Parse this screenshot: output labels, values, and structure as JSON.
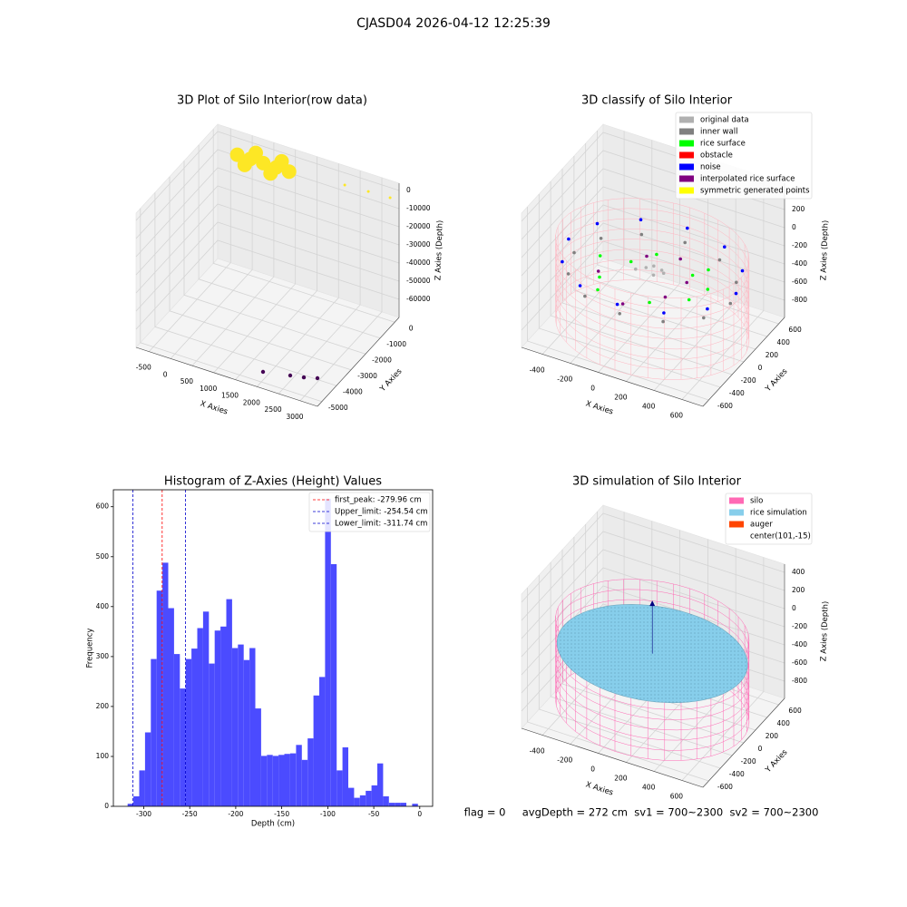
{
  "title": "CJASD04 2026-04-12 12:25:39",
  "footer": "flag = 0     avgDepth = 272 cm  sv1 = 700~2300  sv2 = 700~2300",
  "chart_data": [
    {
      "type": "scatter3d",
      "title": "3D Plot of Silo Interior(row data)",
      "xlabel": "X Axies",
      "ylabel": "Y Axies",
      "zlabel": "Z Axies (Depth)",
      "xlim": [
        -800,
        3400
      ],
      "ylim": [
        -5300,
        300
      ],
      "zlim": [
        -70000,
        4000
      ],
      "xticks": [
        -500,
        0,
        500,
        1000,
        1500,
        2000,
        2500,
        3000
      ],
      "yticks": [
        -5000,
        -4000,
        -3000,
        -2000,
        -1000,
        0
      ],
      "zticks": [
        -60000,
        -50000,
        -40000,
        -30000,
        -20000,
        -10000,
        0
      ],
      "series": [
        {
          "color": "#fde725",
          "marker_size": 8,
          "x": [
            -70,
            230,
            530,
            830,
            1130,
            230,
            830,
            230,
            830
          ],
          "y": [
            -520,
            -520,
            -520,
            -520,
            -520,
            -900,
            -900,
            -140,
            -140
          ],
          "z": [
            0,
            0,
            0,
            0,
            0,
            0,
            0,
            0,
            0
          ]
        },
        {
          "color": "#fde725",
          "marker_size": 1.5,
          "x": [
            2342,
            2867,
            3358
          ],
          "y": [
            -294,
            -232,
            -193
          ],
          "z": [
            0,
            0,
            0
          ]
        },
        {
          "color": "#440154",
          "marker_size": 2.2,
          "x": [
            2102,
            2648,
            2921,
            3177
          ],
          "y": [
            -5188,
            -4936,
            -4813,
            -4639
          ],
          "z": [
            -62000,
            -62000,
            -62000,
            -62000
          ]
        }
      ]
    },
    {
      "type": "scatter3d",
      "title": "3D classify of Silo Interior",
      "xlabel": "X Axies",
      "ylabel": "Y Axies",
      "zlabel": "Z Axies (Depth)",
      "xlim": [
        -550,
        750
      ],
      "ylim": [
        -700,
        700
      ],
      "zlim": [
        -990,
        490
      ],
      "xticks": [
        -400,
        -200,
        0,
        200,
        400,
        600
      ],
      "yticks": [
        -600,
        -400,
        -200,
        0,
        200,
        400,
        600
      ],
      "zticks": [
        -800,
        -600,
        -400,
        -200,
        0,
        200,
        400
      ],
      "legend": "upper right",
      "center": [
        101,
        -15
      ],
      "cylinder": {
        "color": "#ffb6c1",
        "radius": 640,
        "zlim": [
          -950,
          -50
        ]
      },
      "series": [
        {
          "name": "original data",
          "color": "#b0b0b0",
          "x": [
            50,
            120,
            150,
            80,
            0,
            180
          ],
          "y": [
            0,
            -40,
            30,
            60,
            -60,
            -10
          ],
          "z": [
            -300,
            -320,
            -300,
            -310,
            -300,
            -290
          ]
        },
        {
          "name": "inner wall",
          "color": "#808080",
          "x": [
            661,
            586,
            381,
            101,
            -179,
            -384,
            -459,
            -384,
            -179,
            101,
            381,
            586
          ],
          "y": [
            -15,
            265,
            470,
            545,
            470,
            265,
            -15,
            -295,
            -500,
            -575,
            -500,
            -295
          ],
          "z": [
            -380,
            -380,
            -380,
            -380,
            -380,
            -380,
            -380,
            -380,
            -380,
            -380,
            -380,
            -380
          ]
        },
        {
          "name": "rice surface",
          "color": "#00ff00",
          "x": [
            300,
            -100,
            -200,
            400,
            200,
            -300,
            0,
            350,
            -150,
            450
          ],
          "y": [
            200,
            100,
            -200,
            -100,
            -300,
            50,
            300,
            350,
            -350,
            100
          ],
          "z": [
            -400,
            -380,
            -390,
            -410,
            -400,
            -380,
            -390,
            -420,
            -400,
            -410
          ]
        },
        {
          "name": "obstacle",
          "color": "#ff0000",
          "x": [],
          "y": [],
          "z": []
        },
        {
          "name": "noise",
          "color": "#0000ff",
          "x": [
            701,
            621,
            401,
            101,
            -199,
            -419,
            -499,
            -419,
            -199,
            101,
            401,
            621
          ],
          "y": [
            -15,
            285,
            505,
            585,
            505,
            285,
            -15,
            -315,
            -535,
            -615,
            -535,
            -315
          ],
          "z": [
            -250,
            -250,
            -250,
            -250,
            -250,
            -250,
            -250,
            -250,
            -250,
            -250,
            -250,
            -250
          ]
        },
        {
          "name": "interpolated rice surface",
          "color": "#800080",
          "x": [
            250,
            -50,
            300,
            -250,
            150,
            50
          ],
          "y": [
            -150,
            250,
            100,
            -100,
            350,
            -400
          ],
          "z": [
            -420,
            -400,
            -410,
            -420,
            -400,
            -420
          ]
        },
        {
          "name": "symmetric generated points",
          "color": "#ffff00",
          "x": [],
          "y": [],
          "z": []
        }
      ]
    },
    {
      "type": "histogram",
      "title": "Histogram of Z-Axies (Height) Values",
      "xlabel": "Depth (cm)",
      "ylabel": "Frequency",
      "color": "#4b4bff",
      "xlim": [
        -333,
        14
      ],
      "ylim": [
        0,
        634
      ],
      "xticks": [
        -300,
        -250,
        -200,
        -150,
        -100,
        -50,
        0
      ],
      "yticks": [
        0,
        100,
        200,
        300,
        400,
        500,
        600
      ],
      "bins": [
        -317.5,
        -311.19,
        -304.88,
        -298.57,
        -292.26,
        -285.95,
        -279.64,
        -273.33,
        -267.02,
        -260.71,
        -254.4,
        -248.09,
        -241.78,
        -235.47,
        -229.16,
        -222.85,
        -216.54,
        -210.23,
        -203.92,
        -197.61,
        -191.3,
        -184.99,
        -178.68,
        -172.37,
        -166.06,
        -159.75,
        -153.44,
        -147.13,
        -140.82,
        -134.51,
        -128.2,
        -121.89,
        -115.58,
        -109.27,
        -102.96,
        -96.65,
        -90.34,
        -84.03,
        -77.72,
        -71.41,
        -65.1,
        -58.79,
        -52.48,
        -46.17,
        -39.86,
        -33.55,
        -27.24,
        -20.93,
        -14.62,
        -8.31,
        -2
      ],
      "counts": [
        5,
        20,
        72,
        148,
        295,
        432,
        488,
        397,
        305,
        236,
        295,
        316,
        357,
        390,
        286,
        352,
        360,
        415,
        317,
        324,
        293,
        317,
        196,
        101,
        103,
        101,
        103,
        105,
        106,
        123,
        93,
        136,
        222,
        259,
        616,
        485,
        72,
        118,
        37,
        17,
        22,
        31,
        42,
        86,
        20,
        7,
        7,
        7,
        0,
        5
      ],
      "legend": "upper right",
      "lines": [
        {
          "label": "first_peak: -279.96 cm",
          "value": -279.96,
          "color": "#ff0000"
        },
        {
          "label": "Upper_limit: -254.54 cm",
          "value": -254.54,
          "color": "#0000cc"
        },
        {
          "label": "Lower_limit: -311.74 cm",
          "value": -311.74,
          "color": "#0000cc"
        }
      ]
    },
    {
      "type": "silo3d",
      "title": "3D simulation of Silo Interior",
      "xlabel": "X Axies",
      "ylabel": "Y Axies",
      "zlabel": "Z Axies (Depth)",
      "xlim": [
        -550,
        750
      ],
      "ylim": [
        -700,
        700
      ],
      "zlim": [
        -990,
        490
      ],
      "xticks": [
        -400,
        -200,
        0,
        200,
        400,
        600
      ],
      "yticks": [
        -600,
        -400,
        -200,
        0,
        200,
        400,
        600
      ],
      "zticks": [
        -800,
        -600,
        -400,
        -200,
        0,
        200,
        400
      ],
      "legend": "upper right",
      "center": [
        101,
        -15
      ],
      "center_label": "center(101,-15)",
      "series": [
        {
          "name": "silo",
          "color": "#ff69b4",
          "radius": 640,
          "zlim": [
            -950,
            -50
          ]
        },
        {
          "name": "rice simulation",
          "color": "#87ceeb",
          "radius": 630,
          "z": -320
        },
        {
          "name": "auger",
          "color": "#ff4500",
          "marker_color": "#000080",
          "x": [
            101
          ],
          "y": [
            -15
          ],
          "z": [
            230
          ]
        }
      ]
    }
  ]
}
